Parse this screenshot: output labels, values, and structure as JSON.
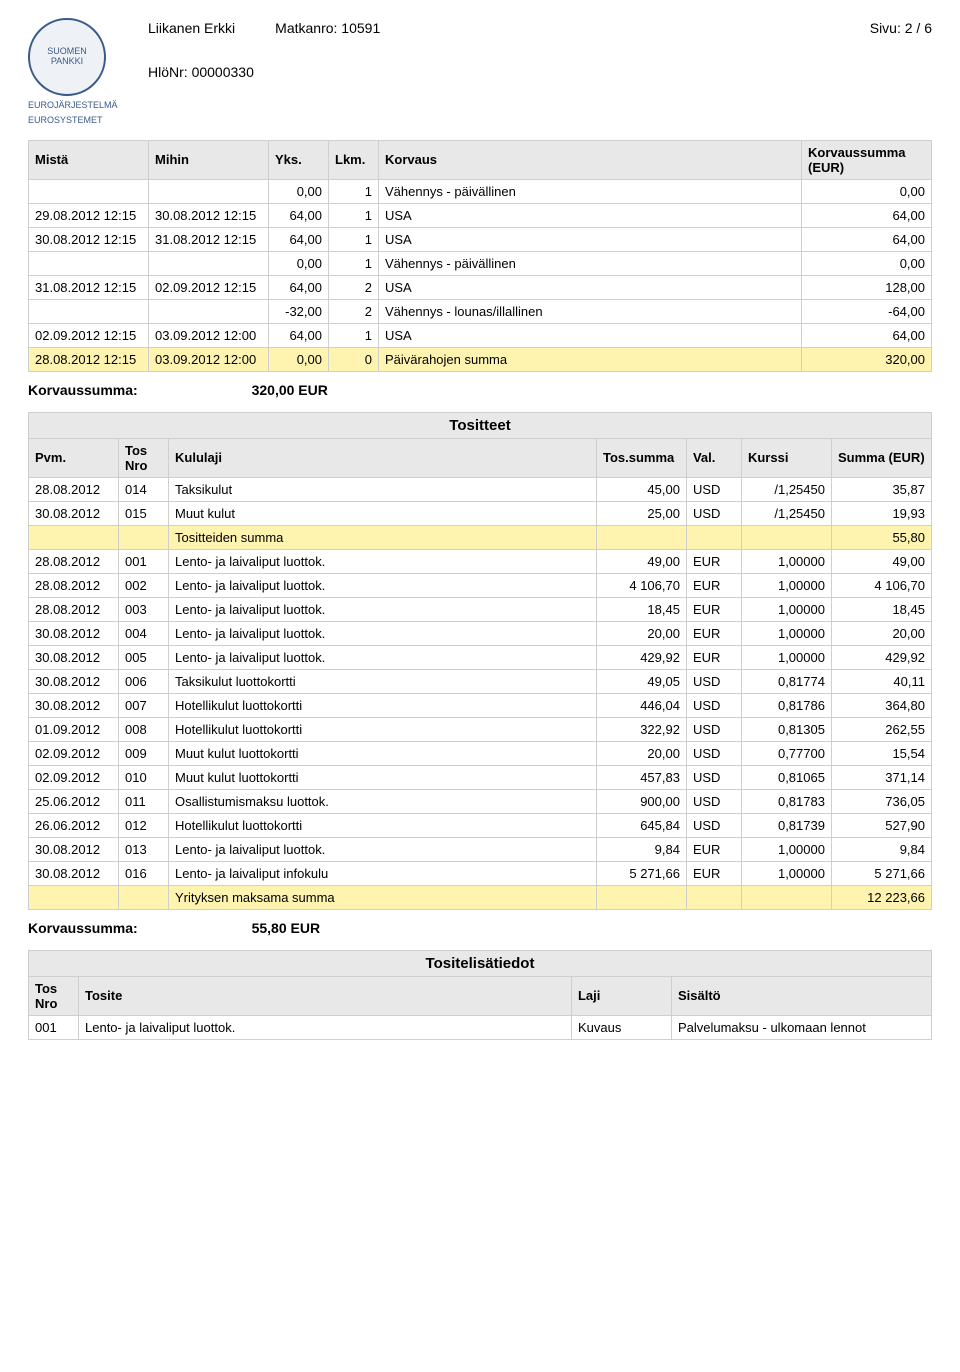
{
  "header": {
    "logo_text": "SUOMEN PANKKI",
    "logo_sub1": "EUROJÄRJESTELMÄ",
    "logo_sub2": "EUROSYSTEMET",
    "name": "Liikanen Erkki",
    "matka_label": "Matkanro:",
    "matka_value": "10591",
    "sivu_label": "Sivu:",
    "sivu_value": "2 / 6",
    "hlo_label": "HlöNr:",
    "hlo_value": "00000330"
  },
  "table1": {
    "headers": {
      "mista": "Mistä",
      "mihin": "Mihin",
      "yks": "Yks.",
      "lkm": "Lkm.",
      "korvaus": "Korvaus",
      "korvaussumma": "Korvaussumma (EUR)"
    },
    "rows": [
      {
        "c1": "",
        "c2": "",
        "c3": "0,00",
        "c4": "1",
        "c5": "Vähennys - päivällinen",
        "c6": "0,00"
      },
      {
        "c1": "29.08.2012 12:15",
        "c2": "30.08.2012 12:15",
        "c3": "64,00",
        "c4": "1",
        "c5": "USA",
        "c6": "64,00"
      },
      {
        "c1": "30.08.2012 12:15",
        "c2": "31.08.2012 12:15",
        "c3": "64,00",
        "c4": "1",
        "c5": "USA",
        "c6": "64,00"
      },
      {
        "c1": "",
        "c2": "",
        "c3": "0,00",
        "c4": "1",
        "c5": "Vähennys - päivällinen",
        "c6": "0,00"
      },
      {
        "c1": "31.08.2012 12:15",
        "c2": "02.09.2012 12:15",
        "c3": "64,00",
        "c4": "2",
        "c5": "USA",
        "c6": "128,00"
      },
      {
        "c1": "",
        "c2": "",
        "c3": "-32,00",
        "c4": "2",
        "c5": "Vähennys - lounas/illallinen",
        "c6": "-64,00"
      },
      {
        "c1": "02.09.2012 12:15",
        "c2": "03.09.2012 12:00",
        "c3": "64,00",
        "c4": "1",
        "c5": "USA",
        "c6": "64,00"
      },
      {
        "c1": "28.08.2012 12:15",
        "c2": "03.09.2012 12:00",
        "c3": "0,00",
        "c4": "0",
        "c5": "Päivärahojen summa",
        "c6": "320,00",
        "hl": true
      }
    ],
    "summary_label": "Korvaussumma:",
    "summary_value": "320,00  EUR"
  },
  "table2": {
    "section_title": "Tositteet",
    "headers": {
      "pvm": "Pvm.",
      "tosnro": "Tos Nro",
      "kululaji": "Kululaji",
      "tossumma": "Tos.summa",
      "val": "Val.",
      "kurssi": "Kurssi",
      "summa": "Summa (EUR)"
    },
    "rows": [
      {
        "c1": "28.08.2012",
        "c2": "014",
        "c3": "Taksikulut",
        "c4": "45,00",
        "c5": "USD",
        "c6": "/1,25450",
        "c7": "35,87"
      },
      {
        "c1": "30.08.2012",
        "c2": "015",
        "c3": "Muut kulut",
        "c4": "25,00",
        "c5": "USD",
        "c6": "/1,25450",
        "c7": "19,93"
      },
      {
        "c1": "",
        "c2": "",
        "c3": "Tositteiden summa",
        "c4": "",
        "c5": "",
        "c6": "",
        "c7": "55,80",
        "hl": true
      },
      {
        "c1": "28.08.2012",
        "c2": "001",
        "c3": "Lento- ja laivaliput luottok.",
        "c4": "49,00",
        "c5": "EUR",
        "c6": "1,00000",
        "c7": "49,00"
      },
      {
        "c1": "28.08.2012",
        "c2": "002",
        "c3": "Lento- ja laivaliput luottok.",
        "c4": "4 106,70",
        "c5": "EUR",
        "c6": "1,00000",
        "c7": "4 106,70"
      },
      {
        "c1": "28.08.2012",
        "c2": "003",
        "c3": "Lento- ja laivaliput luottok.",
        "c4": "18,45",
        "c5": "EUR",
        "c6": "1,00000",
        "c7": "18,45"
      },
      {
        "c1": "30.08.2012",
        "c2": "004",
        "c3": "Lento- ja laivaliput luottok.",
        "c4": "20,00",
        "c5": "EUR",
        "c6": "1,00000",
        "c7": "20,00"
      },
      {
        "c1": "30.08.2012",
        "c2": "005",
        "c3": "Lento- ja laivaliput luottok.",
        "c4": "429,92",
        "c5": "EUR",
        "c6": "1,00000",
        "c7": "429,92"
      },
      {
        "c1": "30.08.2012",
        "c2": "006",
        "c3": "Taksikulut luottokortti",
        "c4": "49,05",
        "c5": "USD",
        "c6": "0,81774",
        "c7": "40,11"
      },
      {
        "c1": "30.08.2012",
        "c2": "007",
        "c3": "Hotellikulut luottokortti",
        "c4": "446,04",
        "c5": "USD",
        "c6": "0,81786",
        "c7": "364,80"
      },
      {
        "c1": "01.09.2012",
        "c2": "008",
        "c3": "Hotellikulut luottokortti",
        "c4": "322,92",
        "c5": "USD",
        "c6": "0,81305",
        "c7": "262,55"
      },
      {
        "c1": "02.09.2012",
        "c2": "009",
        "c3": "Muut kulut luottokortti",
        "c4": "20,00",
        "c5": "USD",
        "c6": "0,77700",
        "c7": "15,54"
      },
      {
        "c1": "02.09.2012",
        "c2": "010",
        "c3": "Muut kulut luottokortti",
        "c4": "457,83",
        "c5": "USD",
        "c6": "0,81065",
        "c7": "371,14"
      },
      {
        "c1": "25.06.2012",
        "c2": "011",
        "c3": "Osallistumismaksu luottok.",
        "c4": "900,00",
        "c5": "USD",
        "c6": "0,81783",
        "c7": "736,05"
      },
      {
        "c1": "26.06.2012",
        "c2": "012",
        "c3": "Hotellikulut luottokortti",
        "c4": "645,84",
        "c5": "USD",
        "c6": "0,81739",
        "c7": "527,90"
      },
      {
        "c1": "30.08.2012",
        "c2": "013",
        "c3": "Lento- ja laivaliput luottok.",
        "c4": "9,84",
        "c5": "EUR",
        "c6": "1,00000",
        "c7": "9,84"
      },
      {
        "c1": "30.08.2012",
        "c2": "016",
        "c3": "Lento- ja laivaliput infokulu",
        "c4": "5 271,66",
        "c5": "EUR",
        "c6": "1,00000",
        "c7": "5 271,66"
      },
      {
        "c1": "",
        "c2": "",
        "c3": "Yrityksen maksama summa",
        "c4": "",
        "c5": "",
        "c6": "",
        "c7": "12 223,66",
        "hl": true
      }
    ],
    "summary_label": "Korvaussumma:",
    "summary_value": "55,80  EUR"
  },
  "table3": {
    "section_title": "Tositelisätiedot",
    "headers": {
      "tosnro": "Tos Nro",
      "tosite": "Tosite",
      "laji": "Laji",
      "sisalto": "Sisältö"
    },
    "rows": [
      {
        "c1": "001",
        "c2": "Lento- ja laivaliput luottok.",
        "c3": "Kuvaus",
        "c4": "Palvelumaksu - ulkomaan lennot"
      }
    ]
  },
  "colors": {
    "highlight": "#fff3b0",
    "header_bg": "#e8e8e8",
    "border": "#cfcfcf"
  }
}
